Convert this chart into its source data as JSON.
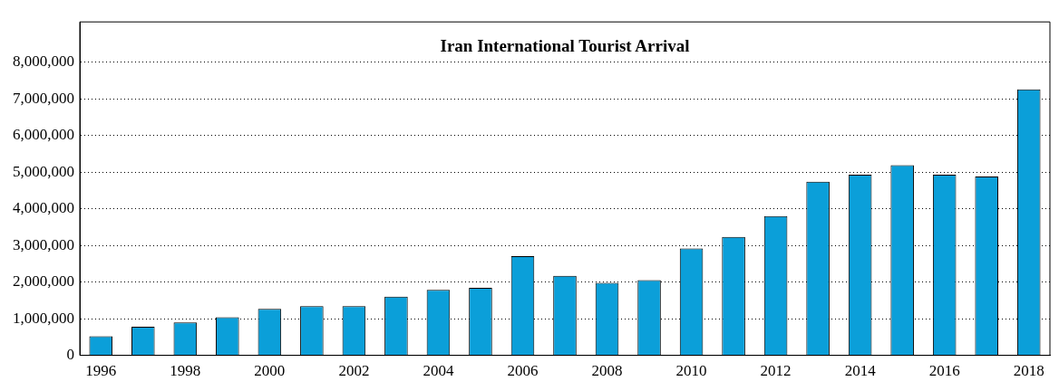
{
  "chart_data": {
    "type": "bar",
    "title": "Iran International Tourist Arrival",
    "categories": [
      "1996",
      null,
      "1998",
      null,
      "2000",
      null,
      "2002",
      null,
      "2004",
      null,
      "2006",
      null,
      "2008",
      null,
      "2010",
      null,
      "2012",
      null,
      "2014",
      null,
      "2016",
      null,
      "2018"
    ],
    "values": [
      520000,
      780000,
      900000,
      1040000,
      1270000,
      1340000,
      1340000,
      1600000,
      1790000,
      1840000,
      2710000,
      2170000,
      1980000,
      2050000,
      2920000,
      3230000,
      3800000,
      4740000,
      4930000,
      5190000,
      4930000,
      4880000,
      7260000
    ],
    "color": "#0b9fd9",
    "ylim": [
      0,
      9100000
    ],
    "yticks": [
      0,
      {
        "value": 1000000,
        "label": "1,000,000"
      },
      {
        "value": 2000000,
        "label": "2,000,000"
      },
      {
        "value": 3000000,
        "label": "3,000,000"
      },
      {
        "value": 4000000,
        "label": "4,000,000"
      },
      {
        "value": 5000000,
        "label": "5,000,000"
      },
      {
        "value": 6000000,
        "label": "6,000,000"
      },
      {
        "value": 7000000,
        "label": "7,000,000"
      },
      {
        "value": 8000000,
        "label": "8,000,000"
      }
    ],
    "grid": "y",
    "legend": false
  }
}
